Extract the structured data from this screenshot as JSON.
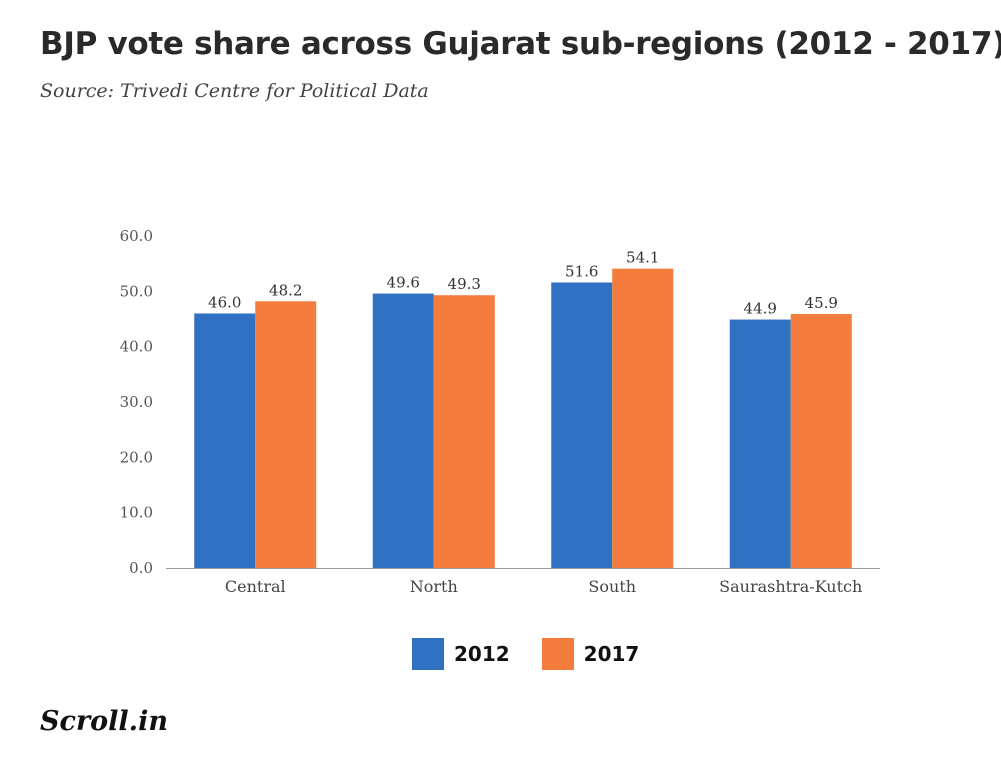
{
  "header": {
    "title": "BJP vote share across Gujarat sub-regions (2012 - 2017)",
    "subtitle": "Source: Trivedi Centre for Political Data"
  },
  "chart_data": {
    "type": "bar",
    "title": "BJP vote share across Gujarat sub-regions (2012 - 2017)",
    "subtitle": "Source: Trivedi Centre for Political Data",
    "xlabel": "",
    "ylabel": "",
    "categories": [
      "Central",
      "North",
      "South",
      "Saurashtra-Kutch"
    ],
    "series": [
      {
        "name": "2012",
        "values": [
          46.0,
          49.6,
          51.6,
          44.9
        ],
        "color": "#3071c1"
      },
      {
        "name": "2017",
        "values": [
          48.2,
          49.3,
          54.1,
          45.9
        ],
        "color": "#f47c3c"
      }
    ],
    "ylim": [
      0,
      60
    ],
    "yticks": [
      "0.0",
      "10.0",
      "20.0",
      "30.0",
      "40.0",
      "50.0",
      "60.0"
    ],
    "grid": false,
    "legend_position": "bottom-center"
  },
  "legend": {
    "items": [
      {
        "label": "2012",
        "color": "#3071c1"
      },
      {
        "label": "2017",
        "color": "#f47c3c"
      }
    ]
  },
  "footer": {
    "logo_text": "Scroll.in"
  }
}
